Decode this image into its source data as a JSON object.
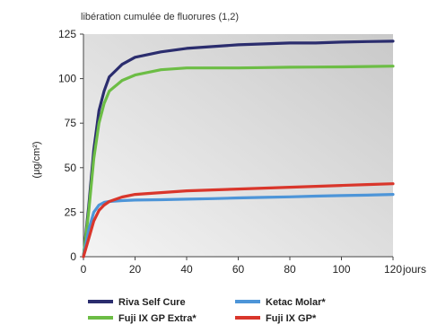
{
  "chart_data": {
    "type": "line",
    "title": "libération cumulée de fluorures (1,2)",
    "ylabel": "(μg/cm²)",
    "xlabel": "",
    "x_unit_label": "jours",
    "xlim": [
      0,
      120
    ],
    "ylim": [
      0,
      125
    ],
    "x_ticks": [
      0,
      20,
      40,
      60,
      80,
      100,
      120
    ],
    "y_ticks": [
      0,
      25,
      50,
      75,
      100,
      125
    ],
    "grid": false,
    "legend_position": "bottom",
    "background_gradient": [
      "#f4f4f4",
      "#c9c9c9"
    ],
    "series": [
      {
        "name": "Riva Self Cure",
        "color": "#2b2d6e",
        "x": [
          0,
          2,
          4,
          6,
          8,
          10,
          15,
          20,
          30,
          40,
          50,
          60,
          70,
          80,
          90,
          100,
          110,
          120
        ],
        "y": [
          0,
          28,
          60,
          82,
          93,
          101,
          108,
          112,
          115,
          117,
          118,
          119,
          119.5,
          120,
          120,
          120.5,
          120.8,
          121
        ]
      },
      {
        "name": "Fuji IX GP Extra*",
        "color": "#6cbd45",
        "x": [
          0,
          2,
          4,
          6,
          8,
          10,
          15,
          20,
          30,
          40,
          50,
          60,
          70,
          80,
          90,
          100,
          110,
          120
        ],
        "y": [
          0,
          25,
          55,
          75,
          86,
          93,
          99,
          102,
          105,
          106,
          106,
          106,
          106.2,
          106.4,
          106.5,
          106.6,
          106.8,
          107
        ]
      },
      {
        "name": "Ketac Molar*",
        "color": "#4d95d8",
        "x": [
          0,
          2,
          4,
          6,
          8,
          10,
          15,
          20,
          30,
          40,
          50,
          60,
          70,
          80,
          90,
          100,
          110,
          120
        ],
        "y": [
          0,
          15,
          25,
          29,
          30.5,
          31,
          31.5,
          31.8,
          32,
          32.3,
          32.6,
          33,
          33.3,
          33.6,
          34,
          34.3,
          34.6,
          35
        ]
      },
      {
        "name": "Fuji IX GP*",
        "color": "#d9362b",
        "x": [
          0,
          2,
          4,
          6,
          8,
          10,
          15,
          20,
          30,
          40,
          50,
          60,
          70,
          80,
          90,
          100,
          110,
          120
        ],
        "y": [
          0,
          10,
          20,
          26,
          29,
          31,
          33.5,
          35,
          36,
          37,
          37.5,
          38,
          38.5,
          39,
          39.5,
          40,
          40.5,
          41
        ]
      }
    ]
  }
}
